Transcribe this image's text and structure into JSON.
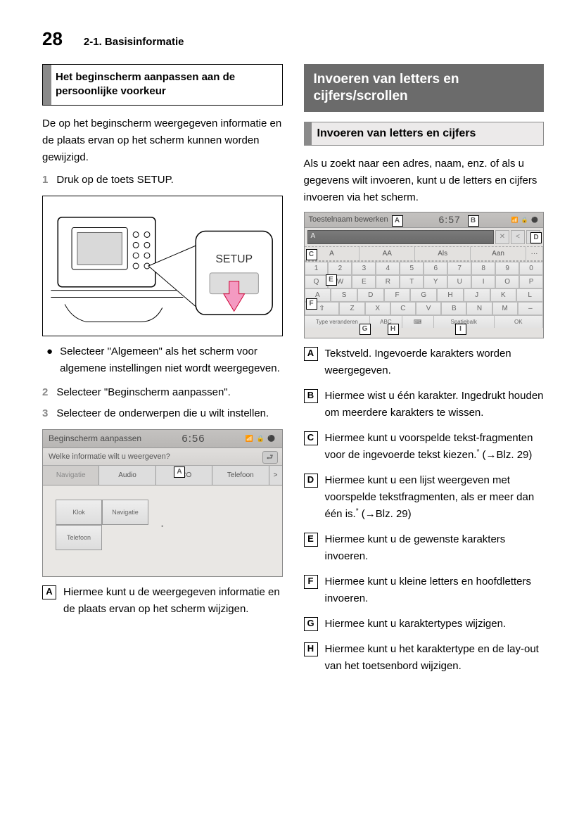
{
  "header": {
    "page_number": "28",
    "section_ref": "2-1. Basisinformatie"
  },
  "left": {
    "box_title": "Het beginscherm aanpassen aan de persoonlijke voorkeur",
    "intro": "De op het beginscherm weergegeven informatie en de plaats ervan op het scherm kunnen worden gewijzigd.",
    "steps": {
      "s1_num": "1",
      "s1": "Druk op de toets SETUP.",
      "s2_num": "2",
      "s2": "Selecteer \"Beginscherm aanpassen\".",
      "s3_num": "3",
      "s3": "Selecteer de onderwerpen die u wilt instellen."
    },
    "bullet": "Selecteer \"Algemeen\" als het scherm voor algemene instellingen niet wordt weergegeven.",
    "fig1": {
      "setup_label": "SETUP"
    },
    "fig2": {
      "title": "Beginscherm aanpassen",
      "time": "6:56",
      "icons": "📶 🔒 ⚫",
      "question": "Welke informatie wilt u weergeven?",
      "back": "⮐",
      "tab1": "Navigatie",
      "tab2": "Audio",
      "tab3": "ECO",
      "tab4": "Telefoon",
      "more": ">",
      "tile1": "Klok",
      "tile2": "Telefoon",
      "tile3": "Navigatie",
      "callout_A": "A"
    },
    "legend": {
      "A": "A",
      "A_text": "Hiermee kunt u de weergegeven informatie en de plaats ervan op het scherm wijzigen."
    }
  },
  "right": {
    "dark_title": "Invoeren van letters en cijfers/scrollen",
    "sub_title": "Invoeren van letters en cijfers",
    "intro": "Als u zoekt naar een adres, naam, enz. of als u gegevens wilt invoeren, kunt u de letters en cijfers invoeren via het scherm.",
    "fig3": {
      "title": "Toestelnaam bewerken",
      "time": "6:57",
      "icons": "📶 🔒 ⚫",
      "field_text": "A",
      "nav_prev": "<",
      "nav_next": ">",
      "sug1": "A",
      "sug2": "AA",
      "sug3": "Als",
      "sug4": "Aan",
      "sug_more": "···",
      "row1": [
        "1",
        "2",
        "3",
        "4",
        "5",
        "6",
        "7",
        "8",
        "9",
        "0"
      ],
      "row2": [
        "Q",
        "W",
        "E",
        "R",
        "T",
        "Y",
        "U",
        "I",
        "O",
        "P"
      ],
      "row3": [
        "A",
        "S",
        "D",
        "F",
        "G",
        "H",
        "J",
        "K",
        "L"
      ],
      "row4": [
        "⇧",
        "Z",
        "X",
        "C",
        "V",
        "B",
        "N",
        "M",
        "–"
      ],
      "b1": "Type veranderen",
      "b2": "ABC",
      "b3": "⌨",
      "b4": "Spatiebalk",
      "b5": "OK",
      "callouts": {
        "A": "A",
        "B": "B",
        "C": "C",
        "D": "D",
        "E": "E",
        "F": "F",
        "G": "G",
        "H": "H",
        "I": "I"
      }
    },
    "legend": {
      "A": "A",
      "A_text": "Tekstveld. Ingevoerde karakters worden weergegeven.",
      "B": "B",
      "B_text": "Hiermee wist u één karakter. Ingedrukt houden om meerdere karakters te wissen.",
      "C": "C",
      "C_text_1": "Hiermee kunt u voorspelde tekst-fragmenten voor de ingevoerde tekst kiezen.",
      "C_text_2": " (→Blz. 29)",
      "D": "D",
      "D_text_1": "Hiermee kunt u een lijst weergeven met voorspelde tekstfragmenten, als er meer dan één is.",
      "D_text_2": " (→Blz. 29)",
      "E": "E",
      "E_text": "Hiermee kunt u de gewenste karakters invoeren.",
      "F": "F",
      "F_text": "Hiermee kunt u kleine letters en hoofdletters invoeren.",
      "G": "G",
      "G_text": "Hiermee kunt u karaktertypes wijzigen.",
      "H": "H",
      "H_text": "Hiermee kunt u het karaktertype en de lay-out van het toetsenbord wijzigen."
    }
  }
}
